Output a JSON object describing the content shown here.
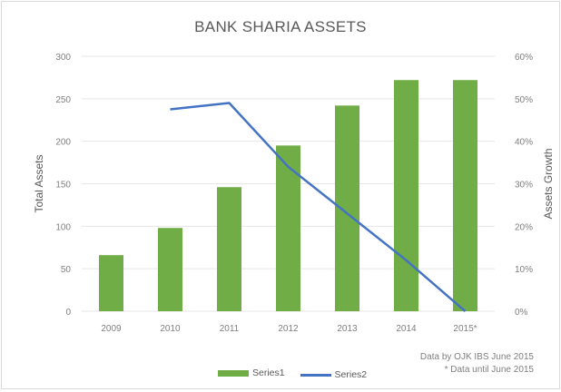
{
  "chart_data": {
    "type": "bar",
    "title": "BANK SHARIA ASSETS",
    "categories": [
      "2009",
      "2010",
      "2011",
      "2012",
      "2013",
      "2014",
      "2015*"
    ],
    "series": [
      {
        "name": "Series1",
        "type": "bar",
        "axis": "left",
        "color": "#70ad47",
        "values": [
          66,
          98,
          146,
          195,
          242,
          272,
          272
        ]
      },
      {
        "name": "Series2",
        "type": "line",
        "axis": "right",
        "color": "#4472c4",
        "values": [
          null,
          0.475,
          0.49,
          0.34,
          0.23,
          0.12,
          0.0
        ]
      }
    ],
    "ylabel": "Total Assets",
    "y2label": "Assets Growth",
    "ylim": [
      0,
      300
    ],
    "y2lim": [
      0,
      0.6
    ],
    "yticks": [
      "0",
      "50",
      "100",
      "150",
      "200",
      "250",
      "300"
    ],
    "y2ticks": [
      "0%",
      "10%",
      "20%",
      "30%",
      "40%",
      "50%",
      "60%"
    ],
    "grid": true,
    "legend_position": "bottom"
  },
  "notes": [
    "Data by OJK IBS June 2015",
    "* Data until June 2015"
  ]
}
